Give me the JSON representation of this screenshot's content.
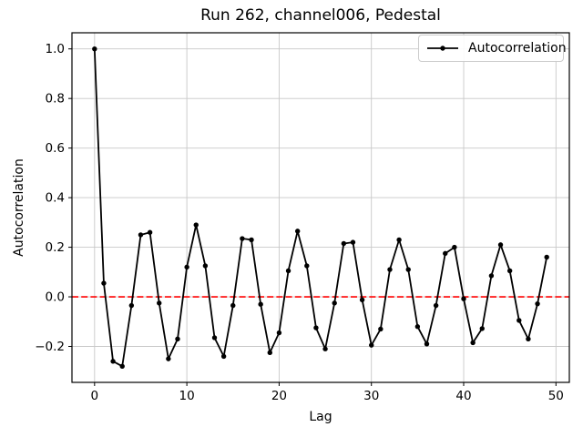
{
  "chart_data": {
    "type": "line",
    "title": "Run 262, channel006, Pedestal",
    "xlabel": "Lag",
    "ylabel": "Autocorrelation",
    "grid": true,
    "legend": {
      "label": "Autocorrelation",
      "position": "upper right"
    },
    "axes": {
      "xlim": [
        -2.45,
        51.45
      ],
      "ylim": [
        -0.345,
        1.065
      ]
    },
    "x_ticks": {
      "values": [
        0,
        10,
        20,
        30,
        40,
        50
      ],
      "labels": [
        "0",
        "10",
        "20",
        "30",
        "40",
        "50"
      ]
    },
    "y_ticks": {
      "values": [
        -0.2,
        0.0,
        0.2,
        0.4,
        0.6,
        0.8,
        1.0
      ],
      "labels": [
        "−0.2",
        "0.0",
        "0.2",
        "0.4",
        "0.6",
        "0.8",
        "1.0"
      ]
    },
    "zero_line": {
      "y": 0,
      "color": "#ff0000",
      "style": "dashed"
    },
    "colors": {
      "series": "#000000",
      "grid": "#c8c8c8",
      "spine": "#000000",
      "background": "#ffffff"
    },
    "series": [
      {
        "name": "Autocorrelation",
        "color": "#000000",
        "marker": "point",
        "x": [
          0,
          1,
          2,
          3,
          4,
          5,
          6,
          7,
          8,
          9,
          10,
          11,
          12,
          13,
          14,
          15,
          16,
          17,
          18,
          19,
          20,
          21,
          22,
          23,
          24,
          25,
          26,
          27,
          28,
          29,
          30,
          31,
          32,
          33,
          34,
          35,
          36,
          37,
          38,
          39,
          40,
          41,
          42,
          43,
          44,
          45,
          46,
          47,
          48,
          49
        ],
        "y": [
          1.0,
          0.055,
          -0.26,
          -0.28,
          -0.035,
          0.25,
          0.26,
          -0.025,
          -0.25,
          -0.17,
          0.12,
          0.29,
          0.125,
          -0.165,
          -0.24,
          -0.035,
          0.235,
          0.23,
          -0.03,
          -0.225,
          -0.145,
          0.105,
          0.265,
          0.125,
          -0.125,
          -0.21,
          -0.025,
          0.215,
          0.22,
          -0.012,
          -0.195,
          -0.13,
          0.11,
          0.23,
          0.11,
          -0.12,
          -0.19,
          -0.035,
          0.175,
          0.2,
          -0.008,
          -0.185,
          -0.128,
          0.085,
          0.21,
          0.105,
          -0.095,
          -0.17,
          -0.028,
          0.16
        ]
      }
    ]
  }
}
